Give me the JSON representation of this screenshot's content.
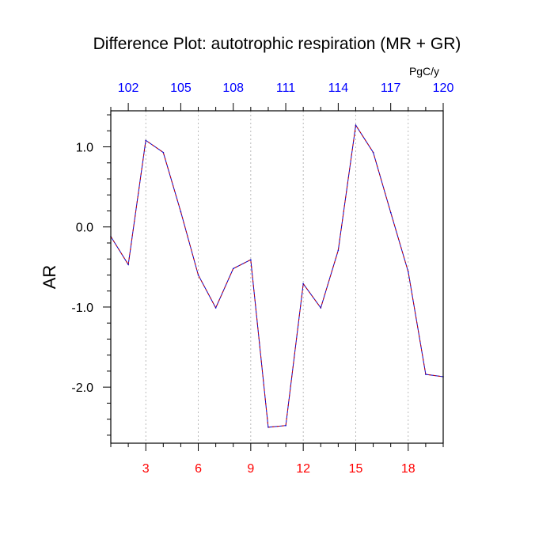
{
  "chart_data": {
    "type": "line",
    "title": "Difference Plot: autotrophic respiration (MR + GR)",
    "ylabel": "AR",
    "top_axis_unit": "PgC/y",
    "x": [
      1,
      2,
      3,
      4,
      5,
      6,
      7,
      8,
      9,
      10,
      11,
      12,
      13,
      14,
      15,
      16,
      17,
      18,
      19,
      20
    ],
    "values": [
      -0.12,
      -0.47,
      1.08,
      0.93,
      0.19,
      -0.6,
      -1.01,
      -0.52,
      -0.41,
      -2.5,
      -2.48,
      -0.71,
      -1.01,
      -0.29,
      1.27,
      0.93,
      0.18,
      -0.56,
      -1.84,
      -1.87
    ],
    "xlim": [
      1,
      20
    ],
    "ylim": [
      -2.7,
      1.45
    ],
    "x_ticks": [
      3,
      6,
      9,
      12,
      15,
      18
    ],
    "x_tick_labels": [
      "3",
      "6",
      "9",
      "12",
      "15",
      "18"
    ],
    "top_ticks": [
      102,
      105,
      108,
      111,
      114,
      117,
      120
    ],
    "top_tick_labels": [
      "102",
      "105",
      "108",
      "111",
      "114",
      "117",
      "120"
    ],
    "top_xlim": [
      101,
      120
    ],
    "y_ticks": [
      1.0,
      0.0,
      -1.0,
      -2.0
    ],
    "y_tick_labels": [
      "1.0",
      "0.0",
      "-1.0",
      "-2.0"
    ],
    "grid": "vertical dotted at x ticks",
    "colors": {
      "line_dash_a": "#cc0000",
      "line_dash_b": "#0000cc",
      "bottom_tick_labels": "#ff0000",
      "top_tick_labels": "#0000ff",
      "axes": "#000000",
      "grid": "#aaaaaa"
    }
  }
}
